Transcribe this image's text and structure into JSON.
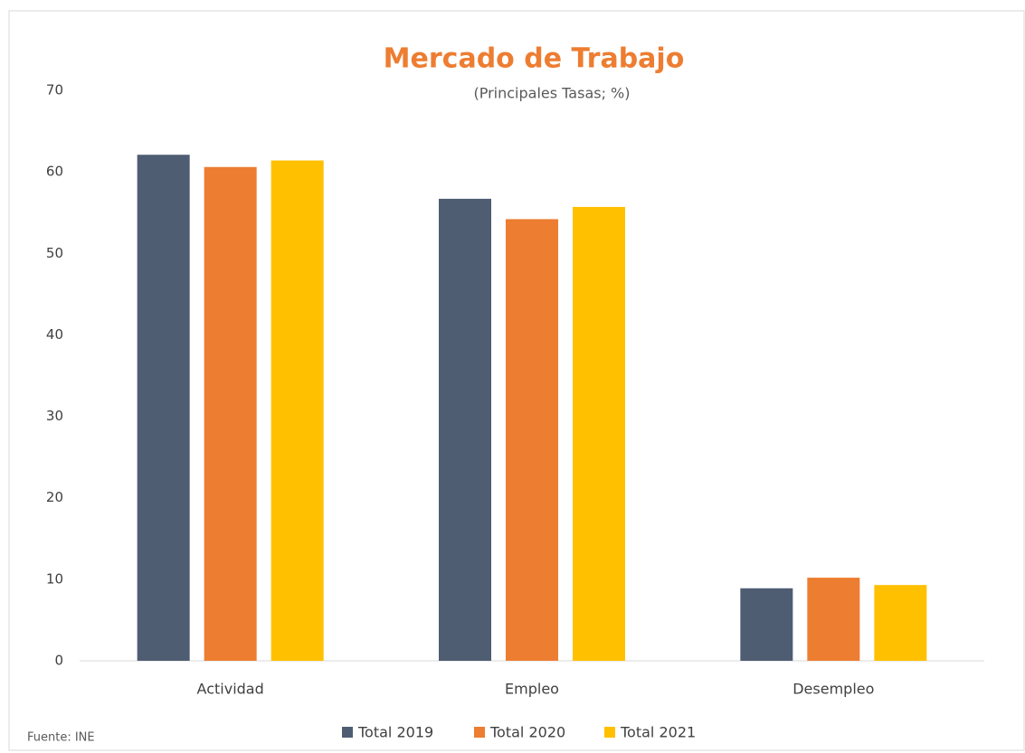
{
  "chart_data": {
    "type": "bar",
    "title": "Mercado de Trabajo",
    "subtitle": "(Principales Tasas; %)",
    "source": "Fuente: INE",
    "categories": [
      "Actividad",
      "Empleo",
      "Desempleo"
    ],
    "series": [
      {
        "name": "Total 2019",
        "color": "#4f5d73",
        "values": [
          62.1,
          56.7,
          8.9
        ]
      },
      {
        "name": "Total 2020",
        "color": "#ed7d31",
        "values": [
          60.6,
          54.2,
          10.2
        ]
      },
      {
        "name": "Total 2021",
        "color": "#ffc000",
        "values": [
          61.4,
          55.7,
          9.3
        ]
      }
    ],
    "ylim": [
      0,
      70
    ],
    "yticks": [
      0,
      10,
      20,
      30,
      40,
      50,
      60,
      70
    ],
    "grid": false,
    "legend": "bottom"
  }
}
